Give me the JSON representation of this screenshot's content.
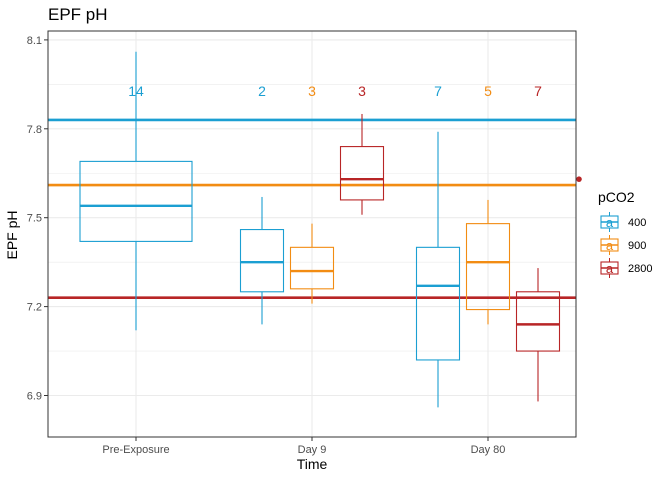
{
  "chart_data": {
    "type": "box",
    "title": "EPF pH",
    "xlabel": "Time",
    "ylabel": "EPF pH",
    "categories": [
      "Pre-Exposure",
      "Day 9",
      "Day 80"
    ],
    "ylim": [
      6.76,
      8.13
    ],
    "yticks": [
      6.9,
      7.2,
      7.5,
      7.8,
      8.1
    ],
    "ytick_labels": [
      "6.9",
      "7.2",
      "7.5",
      "7.8",
      "8.1"
    ],
    "grid": true,
    "legend": {
      "title": "pCO2",
      "position": "right",
      "key_glyph": "a",
      "entries": [
        "400",
        "900",
        "2800"
      ]
    },
    "hlines": [
      {
        "group": "400",
        "y": 7.83
      },
      {
        "group": "900",
        "y": 7.61
      },
      {
        "group": "2800",
        "y": 7.23
      }
    ],
    "series": [
      {
        "name": "400",
        "color": "#1b9fd2",
        "boxes": [
          {
            "category": "Pre-Exposure",
            "min": 7.12,
            "q1": 7.42,
            "median": 7.54,
            "q3": 7.69,
            "max": 8.06,
            "n": "14",
            "outliers": []
          },
          {
            "category": "Day 9",
            "min": 7.14,
            "q1": 7.25,
            "median": 7.35,
            "q3": 7.46,
            "max": 7.57,
            "n": "2",
            "outliers": []
          },
          {
            "category": "Day 80",
            "min": 6.86,
            "q1": 7.02,
            "median": 7.27,
            "q3": 7.4,
            "max": 7.79,
            "n": "7",
            "outliers": []
          }
        ]
      },
      {
        "name": "900",
        "color": "#f28c13",
        "boxes": [
          {
            "category": "Day 9",
            "min": 7.21,
            "q1": 7.26,
            "median": 7.32,
            "q3": 7.4,
            "max": 7.48,
            "n": "3",
            "outliers": []
          },
          {
            "category": "Day 80",
            "min": 7.14,
            "q1": 7.19,
            "median": 7.35,
            "q3": 7.48,
            "max": 7.56,
            "n": "5",
            "outliers": []
          }
        ]
      },
      {
        "name": "2800",
        "color": "#b82526",
        "boxes": [
          {
            "category": "Day 9",
            "min": 7.51,
            "q1": 7.56,
            "median": 7.63,
            "q3": 7.74,
            "max": 7.85,
            "n": "3",
            "outliers": []
          },
          {
            "category": "Day 80",
            "min": 6.88,
            "q1": 7.05,
            "median": 7.14,
            "q3": 7.25,
            "max": 7.33,
            "n": "7",
            "outliers": [
              7.63
            ]
          }
        ]
      }
    ]
  }
}
